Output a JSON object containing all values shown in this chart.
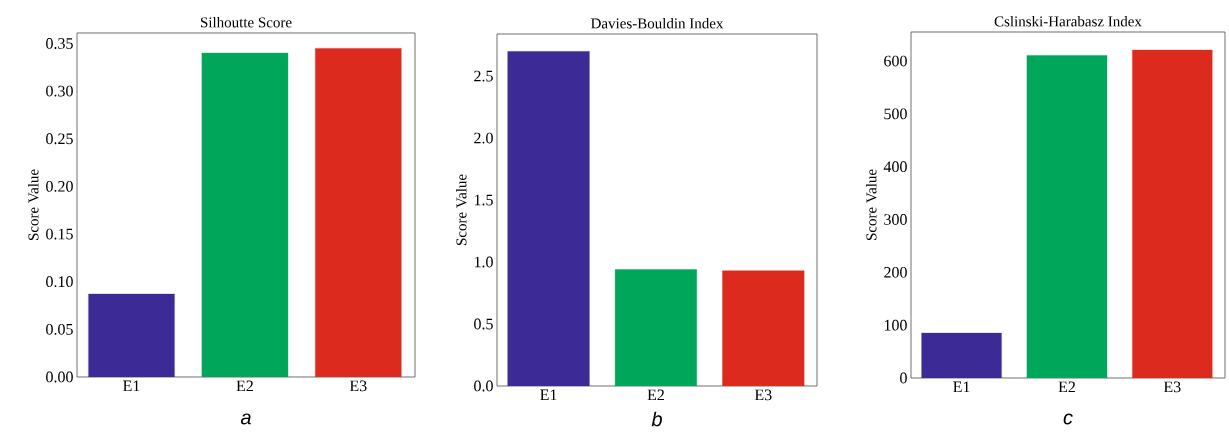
{
  "chart_data": [
    {
      "type": "bar",
      "title": "Silhoutte Score",
      "ylabel": "Score Value",
      "annotations": [
        "a"
      ],
      "categories": [
        "E1",
        "E2",
        "E3"
      ],
      "values": [
        0.087,
        0.34,
        0.345
      ],
      "colors": [
        "#3c2a96",
        "#00a65a",
        "#dd2a1f"
      ],
      "ylim": [
        0,
        0.361
      ],
      "yticks": [
        {
          "value": 0,
          "label": "0.00"
        },
        {
          "value": 0.05,
          "label": "0.05"
        },
        {
          "value": 0.1,
          "label": "0.10"
        },
        {
          "value": 0.15,
          "label": "0.15"
        },
        {
          "value": 0.2,
          "label": "0.20"
        },
        {
          "value": 0.25,
          "label": "0.25"
        },
        {
          "value": 0.3,
          "label": "0.30"
        },
        {
          "value": 0.35,
          "label": "0.35"
        }
      ],
      "grid": false
    },
    {
      "type": "bar",
      "title": "Davies-Bouldin Index",
      "ylabel": "Score Value",
      "annotations": [
        "b"
      ],
      "categories": [
        "E1",
        "E2",
        "E3"
      ],
      "values": [
        2.7,
        0.94,
        0.93
      ],
      "colors": [
        "#3c2a96",
        "#00a65a",
        "#dd2a1f"
      ],
      "ylim": [
        0,
        2.84
      ],
      "yticks": [
        {
          "value": 0,
          "label": "0.0"
        },
        {
          "value": 0.5,
          "label": "0.5"
        },
        {
          "value": 1,
          "label": "1.0"
        },
        {
          "value": 1.5,
          "label": "1.5"
        },
        {
          "value": 2,
          "label": "2.0"
        },
        {
          "value": 2.5,
          "label": "2.5"
        }
      ],
      "grid": false
    },
    {
      "type": "bar",
      "title": "Cslinski-Harabasz Index",
      "ylabel": "Score Value",
      "annotations": [
        "c"
      ],
      "categories": [
        "E1",
        "E2",
        "E3"
      ],
      "values": [
        85,
        611,
        621
      ],
      "colors": [
        "#3c2a96",
        "#00a65a",
        "#dd2a1f"
      ],
      "ylim": [
        0,
        655
      ],
      "yticks": [
        0,
        100,
        200,
        300,
        400,
        500,
        600
      ],
      "grid": false
    }
  ]
}
